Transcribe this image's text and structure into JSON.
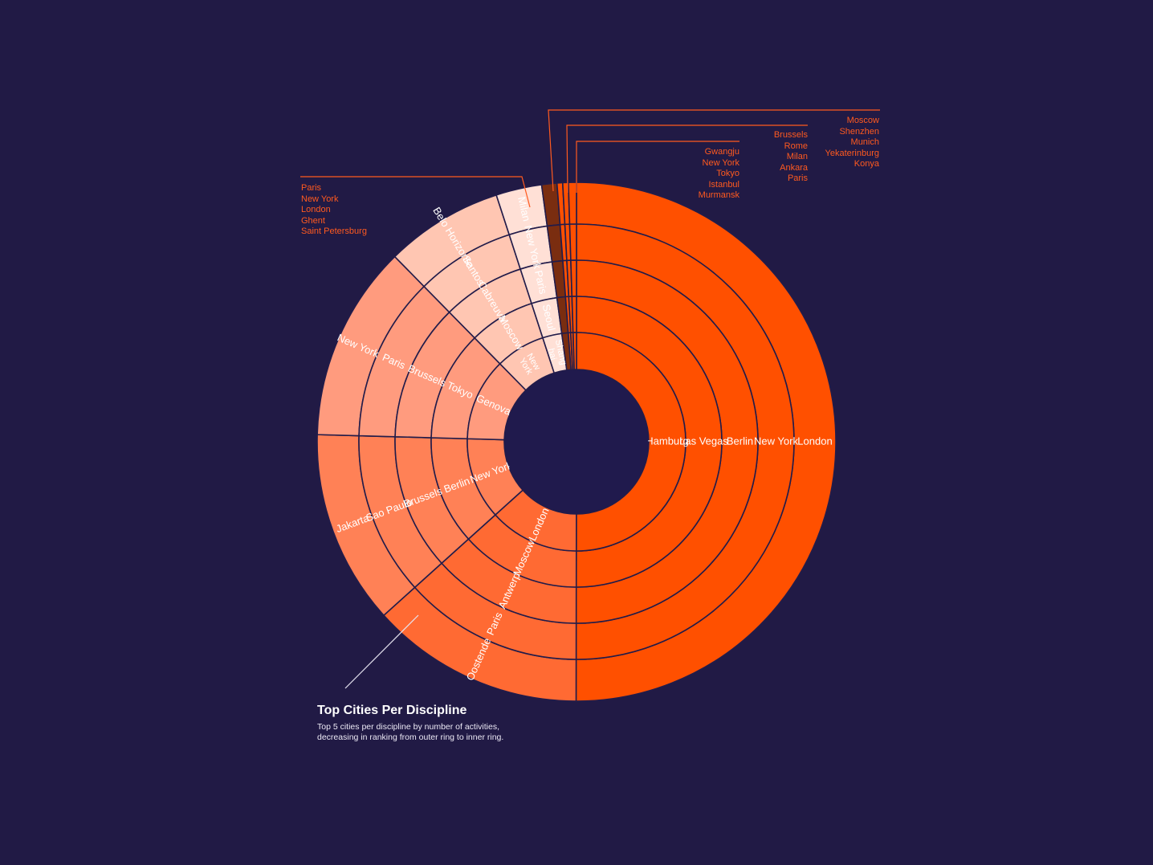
{
  "chart_data": {
    "type": "sunburst",
    "title": "Top Cities Per Discipline",
    "subtitle_lines": [
      "Top 5 cities per discipline by number of activities,",
      "decreasing in ranking from outer ring to inner ring."
    ],
    "ring_order": "outer ring = rank 1, inner ring = rank 5",
    "disciplines": [
      {
        "share": 0.5,
        "color": "#ff5000",
        "cities": [
          "London",
          "New York",
          "Berlin",
          "Las Vegas",
          "Hamburg"
        ]
      },
      {
        "share": 0.133,
        "color": "#ff6a33",
        "cities": [
          "Oostende",
          "Paris",
          "Antwerp",
          "Moscow",
          "London"
        ]
      },
      {
        "share": 0.121,
        "color": "#ff8156",
        "cities": [
          "Jakarta",
          "Sao Paulo",
          "Brussels",
          "Berlin",
          "New York"
        ]
      },
      {
        "share": 0.122,
        "color": "#ff9b7e",
        "cities": [
          "New York",
          "Paris",
          "Brussels",
          "Tokyo",
          "Genova"
        ]
      },
      {
        "share": 0.0735,
        "color": "#ffc6b2",
        "cities": [
          "Belo Horizonte",
          "Santos",
          "Cabreuva",
          "Moscow",
          "New York"
        ]
      },
      {
        "share": 0.0285,
        "color": "#ffe0d6",
        "cities": [
          "Milan",
          "New York",
          "Paris",
          "Seoul",
          "Shanghai"
        ]
      },
      {
        "share": 0.0095,
        "color": "#7a2d10",
        "cities": [
          "Paris",
          "New York",
          "London",
          "Ghent",
          "Saint Petersburg"
        ]
      },
      {
        "share": 0.0035,
        "color": "#ff5000",
        "cities": [
          "Moscow",
          "Shenzhen",
          "Munich",
          "Yekaterinburg",
          "Konya"
        ]
      },
      {
        "share": 0.0035,
        "color": "#ff5000",
        "cities": [
          "Brussels",
          "Rome",
          "Milan",
          "Ankara",
          "Paris"
        ]
      },
      {
        "share": 0.005,
        "color": "#ff5000",
        "cities": [
          "Gwangju",
          "New York",
          "Tokyo",
          "Istanbul",
          "Murmansk"
        ]
      }
    ]
  },
  "callouts": {
    "dark": [
      "Paris",
      "New York",
      "London",
      "Ghent",
      "Saint Petersburg"
    ],
    "c1": [
      "Moscow",
      "Shenzhen",
      "Munich",
      "Yekaterinburg",
      "Konya"
    ],
    "c2": [
      "Brussels",
      "Rome",
      "Milan",
      "Ankara",
      "Paris"
    ],
    "c3": [
      "Gwangju",
      "New York",
      "Tokyo",
      "Istanbul",
      "Murmansk"
    ]
  },
  "label_display": {
    "Shanghai": [
      "Shang",
      "hai"
    ],
    "New York@3-4": [
      "New",
      "York"
    ]
  },
  "caption": {
    "title": "Top Cities Per Discipline",
    "line1": "Top 5 cities per discipline by number of activities,",
    "line2": "decreasing in ranking from outer ring to inner ring."
  },
  "colors": {
    "background": "#211a45",
    "stroke": "#221c4a",
    "callout": "#ff5a1f",
    "label": "#ffffff"
  }
}
